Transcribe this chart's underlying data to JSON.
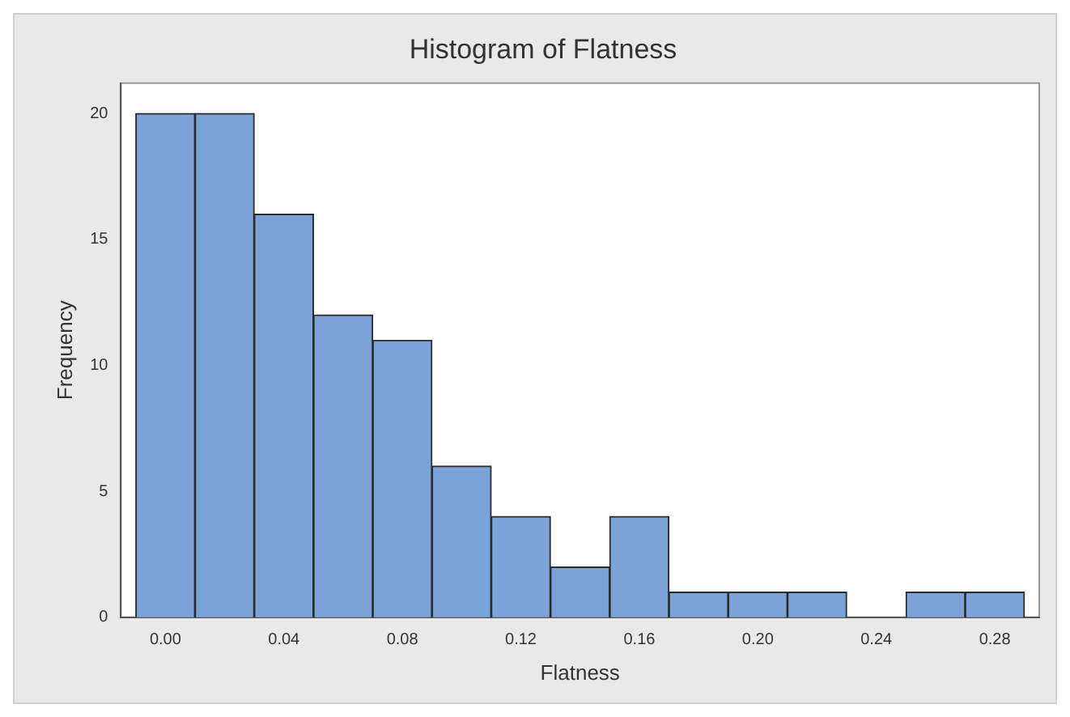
{
  "chart_data": {
    "type": "histogram",
    "title": "Histogram of Flatness",
    "xlabel": "Flatness",
    "ylabel": "Frequency",
    "bins": [
      -0.01,
      0.01,
      0.03,
      0.05,
      0.07,
      0.09,
      0.11,
      0.13,
      0.15,
      0.17,
      0.19,
      0.21,
      0.23,
      0.25,
      0.27,
      0.29
    ],
    "values": [
      20,
      20,
      16,
      12,
      11,
      6,
      4,
      2,
      4,
      1,
      1,
      1,
      0,
      1,
      1
    ],
    "color": "#7ba3d9",
    "xlim": [
      -0.015,
      0.295
    ],
    "xticks": [
      {
        "value": 0,
        "label": "0.00"
      },
      {
        "value": 0.04,
        "label": "0.04"
      },
      {
        "value": 0.08,
        "label": "0.08"
      },
      {
        "value": 0.12,
        "label": "0.12"
      },
      {
        "value": 0.16,
        "label": "0.16"
      },
      {
        "value": 0.2,
        "label": "0.20"
      },
      {
        "value": 0.24,
        "label": "0.24"
      },
      {
        "value": 0.28,
        "label": "0.28"
      }
    ],
    "ylim": [
      0,
      21.2
    ],
    "yticks": [
      0,
      5,
      10,
      15,
      20
    ],
    "grid": false
  }
}
